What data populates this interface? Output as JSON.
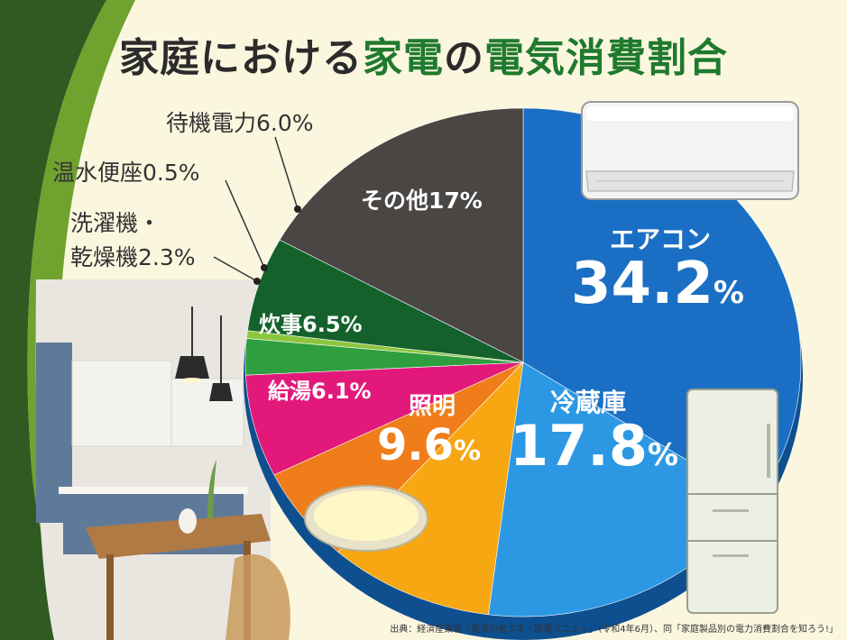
{
  "title": {
    "part1": "家庭における",
    "part2": "家電",
    "part3": "の",
    "part4": "電気消費割合"
  },
  "chart_data": {
    "type": "pie",
    "title": "家庭における家電の電気消費割合",
    "slices": [
      {
        "name": "エアコン",
        "value": 34.2,
        "label": "エアコン",
        "value_text": "34.2",
        "color": "#1a6fc4"
      },
      {
        "name": "冷蔵庫",
        "value": 17.8,
        "label": "冷蔵庫",
        "value_text": "17.8",
        "color": "#2c98e3"
      },
      {
        "name": "照明",
        "value": 9.6,
        "label": "照明",
        "value_text": "9.6",
        "color": "#f6a712"
      },
      {
        "name": "給湯",
        "value": 6.1,
        "label": "給湯6.1%",
        "color": "#ef7d1a"
      },
      {
        "name": "炊事",
        "value": 6.5,
        "label": "炊事6.5%",
        "color": "#e2197a"
      },
      {
        "name": "洗濯機・乾燥機",
        "value": 2.3,
        "label_line1": "洗濯機・",
        "label_line2": "乾燥機2.3%",
        "color": "#2e9e3e"
      },
      {
        "name": "温水便座",
        "value": 0.5,
        "label": "温水便座0.5%",
        "color": "#8cc63f"
      },
      {
        "name": "待機電力",
        "value": 6.0,
        "label": "待機電力6.0%",
        "color": "#14612c"
      },
      {
        "name": "その他",
        "value": 17,
        "label": "その他17%",
        "color": "#4a4644"
      }
    ],
    "percent_sign": "%"
  },
  "source": "出典：経済産業省「夏季の省エネ・節電メニュー」（令和4年6月）、同「家庭製品別の電力消費割合を知ろう!」"
}
